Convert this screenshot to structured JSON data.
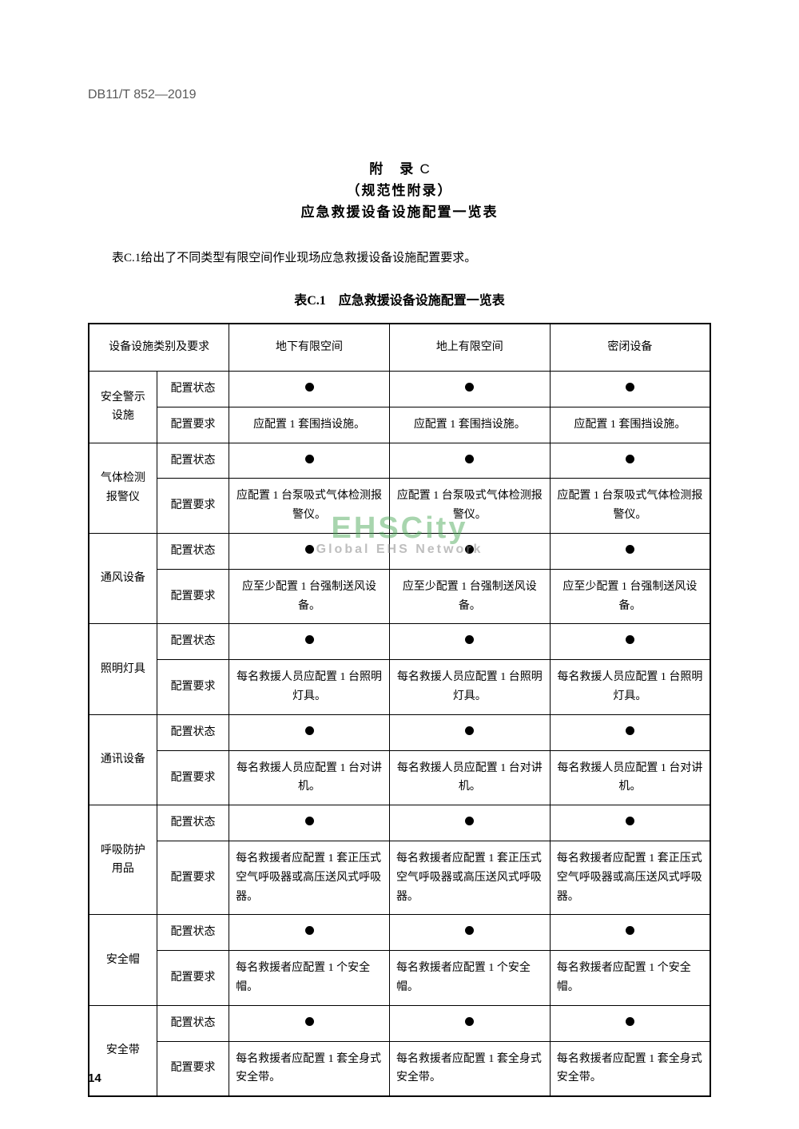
{
  "document_id": "DB11/T 852—2019",
  "appendix": {
    "label": "附　录",
    "letter": "C",
    "type": "（规范性附录）",
    "title": "应急救援设备设施配置一览表"
  },
  "intro": "表C.1给出了不同类型有限空间作业现场应急救援设备设施配置要求。",
  "table_caption": "表C.1　应急救援设备设施配置一览表",
  "headers": {
    "category": "设备设施类别及要求",
    "col1": "地下有限空间",
    "col2": "地上有限空间",
    "col3": "密闭设备"
  },
  "row_labels": {
    "status": "配置状态",
    "requirement": "配置要求"
  },
  "rows": [
    {
      "category": "安全警示设施",
      "status": [
        "●",
        "●",
        "●"
      ],
      "requirement": [
        "应配置 1 套围挡设施。",
        "应配置 1 套围挡设施。",
        "应配置 1 套围挡设施。"
      ],
      "align": "center"
    },
    {
      "category": "气体检测报警仪",
      "status": [
        "●",
        "●",
        "●"
      ],
      "requirement": [
        "应配置 1 台泵吸式气体检测报警仪。",
        "应配置 1 台泵吸式气体检测报警仪。",
        "应配置 1 台泵吸式气体检测报警仪。"
      ],
      "align": "center"
    },
    {
      "category": "通风设备",
      "status": [
        "●",
        "●",
        "●"
      ],
      "requirement": [
        "应至少配置 1 台强制送风设备。",
        "应至少配置 1 台强制送风设备。",
        "应至少配置 1 台强制送风设备。"
      ],
      "align": "center"
    },
    {
      "category": "照明灯具",
      "status": [
        "●",
        "●",
        "●"
      ],
      "requirement": [
        "每名救援人员应配置 1 台照明灯具。",
        "每名救援人员应配置 1 台照明灯具。",
        "每名救援人员应配置 1 台照明灯具。"
      ],
      "align": "center"
    },
    {
      "category": "通讯设备",
      "status": [
        "●",
        "●",
        "●"
      ],
      "requirement": [
        "每名救援人员应配置 1 台对讲机。",
        "每名救援人员应配置 1 台对讲机。",
        "每名救援人员应配置 1 台对讲机。"
      ],
      "align": "center"
    },
    {
      "category": "呼吸防护用品",
      "status": [
        "●",
        "●",
        "●"
      ],
      "requirement": [
        "每名救援者应配置 1 套正压式空气呼吸器或高压送风式呼吸器。",
        "每名救援者应配置 1 套正压式空气呼吸器或高压送风式呼吸器。",
        "每名救援者应配置 1 套正压式空气呼吸器或高压送风式呼吸器。"
      ],
      "align": "left"
    },
    {
      "category": "安全帽",
      "status": [
        "●",
        "●",
        "●"
      ],
      "requirement": [
        "每名救援者应配置 1 个安全帽。",
        "每名救援者应配置 1 个安全帽。",
        "每名救援者应配置 1 个安全帽。"
      ],
      "align": "left"
    },
    {
      "category": "安全带",
      "status": [
        "●",
        "●",
        "●"
      ],
      "requirement": [
        "每名救援者应配置 1 套全身式安全带。",
        "每名救援者应配置 1 套全身式安全带。",
        "每名救援者应配置 1 套全身式安全带。"
      ],
      "align": "left"
    }
  ],
  "watermark": {
    "main": "EHSCity",
    "sub": "Global EHS Network"
  },
  "page_number": "14"
}
